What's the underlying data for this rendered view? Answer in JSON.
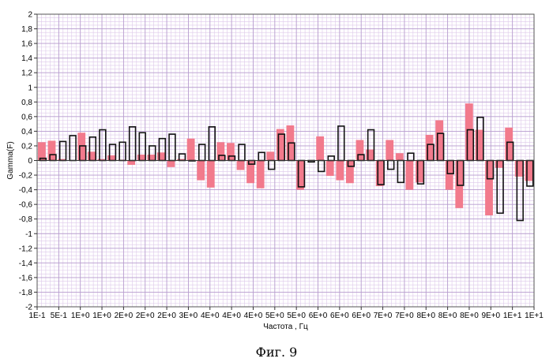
{
  "figure_caption": "Фиг. 9",
  "colors": {
    "series_filled": "#f27a8c",
    "series_outline": "#111111",
    "grid_minor": "#ddc8ea",
    "grid_major": "#b89ecf",
    "plot_background": "#ffffff"
  },
  "chart_data": {
    "type": "bar",
    "xlabel": "Частота , Гц",
    "ylabel": "Gamma(F)",
    "ylim": [
      -2,
      2
    ],
    "grid": true,
    "x_tick_labels": [
      "1E-1",
      "5E-1",
      "1E+0",
      "1E+0",
      "2E+0",
      "2E+0",
      "2E+0",
      "3E+0",
      "4E+0",
      "4E+0",
      "4E+0",
      "5E+0",
      "5E+0",
      "6E+0",
      "6E+0",
      "6E+0",
      "7E+0",
      "7E+0",
      "8E+0",
      "8E+0",
      "8E+0",
      "9E+0",
      "1E+1",
      "1E+1"
    ],
    "y_ticks": [
      2,
      1.8,
      1.6,
      1.4,
      1.2,
      1,
      0.8,
      0.6,
      0.4,
      0.2,
      0,
      -0.2,
      -0.4,
      -0.6,
      -0.8,
      -1,
      -1.2,
      -1.4,
      -1.6,
      -1.8,
      -2
    ],
    "y_tick_labels": [
      "2",
      "1,8",
      "1,6",
      "1,4",
      "1,2",
      "1",
      "0,8",
      "0,6",
      "0,4",
      "0,2",
      "0",
      "-0,2",
      "-0,4",
      "-0,6",
      "-0,8",
      "-1",
      "-1,2",
      "-1,4",
      "-1,6",
      "-1,8",
      "-2"
    ],
    "series": [
      {
        "style": "filled",
        "values": [
          0.25,
          0.27,
          0.02,
          0.0,
          0.38,
          0.12,
          0.02,
          0.07,
          0.01,
          -0.06,
          0.08,
          0.08,
          0.11,
          -0.09,
          0.02,
          0.3,
          -0.27,
          -0.37,
          0.25,
          0.24,
          -0.13,
          -0.31,
          -0.38,
          0.12,
          0.43,
          0.48,
          -0.4,
          0.0,
          0.33,
          -0.21,
          -0.27,
          -0.31,
          0.28,
          0.15,
          -0.35,
          0.28,
          0.1,
          -0.4,
          -0.3,
          0.35,
          0.55,
          -0.4,
          -0.65,
          0.78,
          0.42,
          -0.75,
          -0.1,
          0.45,
          -0.22,
          -0.28
        ]
      },
      {
        "style": "outline",
        "values": [
          0.03,
          0.08,
          0.26,
          0.34,
          0.2,
          0.32,
          0.42,
          0.22,
          0.25,
          0.46,
          0.38,
          0.2,
          0.3,
          0.36,
          0.09,
          0.0,
          0.22,
          0.46,
          0.07,
          0.06,
          0.22,
          -0.05,
          0.11,
          -0.12,
          0.36,
          0.24,
          -0.36,
          -0.02,
          -0.15,
          0.06,
          0.47,
          -0.08,
          0.08,
          0.42,
          -0.33,
          -0.12,
          -0.3,
          0.1,
          -0.32,
          0.22,
          0.37,
          -0.18,
          -0.34,
          0.42,
          0.59,
          -0.25,
          -0.72,
          0.25,
          -0.82,
          -0.35
        ]
      }
    ]
  }
}
